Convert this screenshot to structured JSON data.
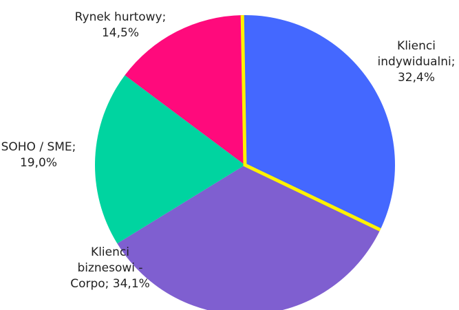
{
  "chart_data": {
    "type": "pie",
    "title": "",
    "slices": [
      {
        "label_lines": [
          "Klienci",
          "indywidualni;",
          "32,4%"
        ],
        "value": 32.4,
        "color": "#4468FF",
        "highlight": true
      },
      {
        "label_lines": [
          "Klienci",
          "biznesowi -",
          "Corpo; 34,1%"
        ],
        "value": 34.1,
        "color": "#7F5FD0",
        "highlight": false
      },
      {
        "label_lines": [
          "SOHO / SME;",
          "19,0%"
        ],
        "value": 19.0,
        "color": "#00D4A0",
        "highlight": false
      },
      {
        "label_lines": [
          "Rynek hurtowy;",
          "14,5%"
        ],
        "value": 14.5,
        "color": "#FF0A7C",
        "highlight": false
      }
    ],
    "highlight_color": "#FFF200",
    "legend": "none"
  }
}
